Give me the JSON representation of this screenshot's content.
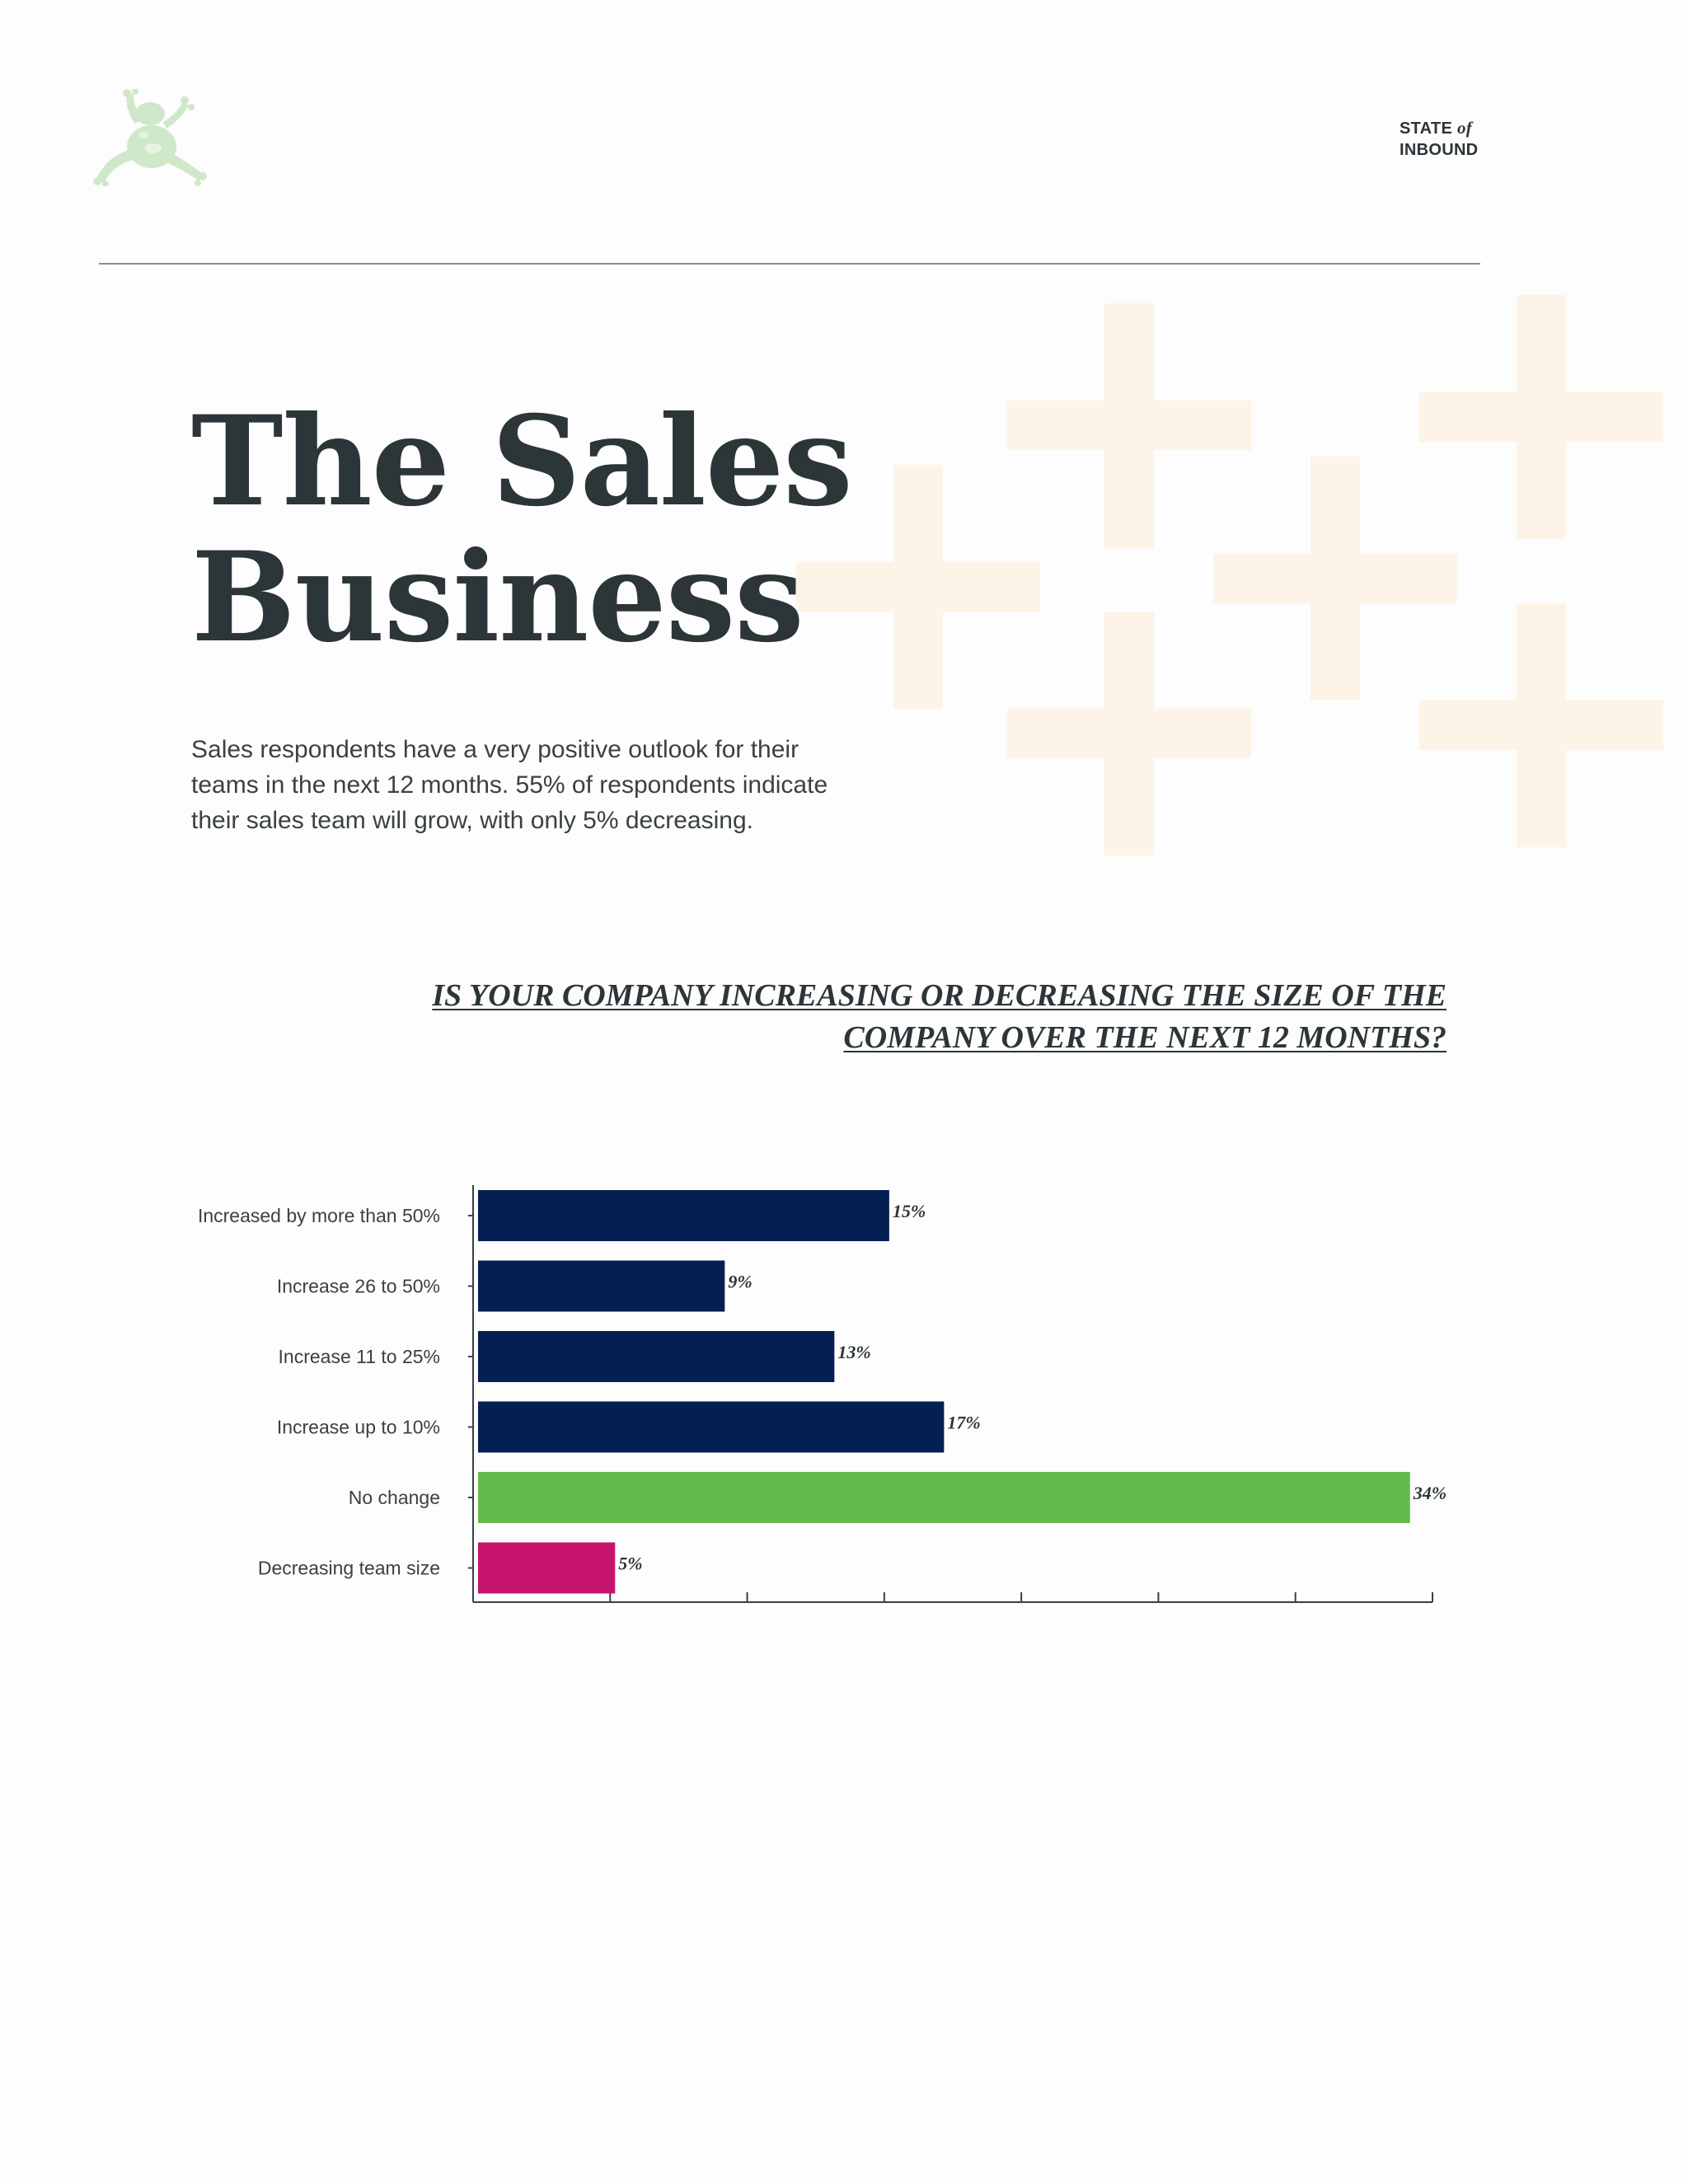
{
  "header": {
    "brand_top": "STATE",
    "brand_of": "of",
    "brand_bottom": "INBOUND",
    "logo_icon": "frog-icon",
    "logo_color": "#cfe8c9"
  },
  "title": {
    "line1": "The Sales",
    "line2": "Business"
  },
  "intro": "Sales respondents have a very positive outlook for their teams in the next 12 months. 55% of respondents indicate their sales team will grow, with only 5% decreasing.",
  "question": "IS YOUR COMPANY INCREASING OR DECREASING THE SIZE OF THE COMPANY OVER THE NEXT 12 MONTHS?",
  "colors": {
    "navy": "#061f52",
    "green": "#64ba4a",
    "magenta": "#c7156d",
    "text": "#2c3538",
    "decor_plus": "#fdf3e7"
  },
  "chart_data": {
    "type": "bar",
    "orientation": "horizontal",
    "title": "IS YOUR COMPANY INCREASING OR DECREASING THE SIZE OF THE COMPANY OVER THE NEXT 12 MONTHS?",
    "categories": [
      "Increased by more than 50%",
      "Increase 26 to 50%",
      "Increase 11 to 25%",
      "Increase up to 10%",
      "No change",
      "Decreasing team size"
    ],
    "values": [
      15,
      9,
      13,
      17,
      34,
      5
    ],
    "value_labels": [
      "15%",
      "9%",
      "13%",
      "17%",
      "34%",
      "5%"
    ],
    "bar_colors": [
      "#061f52",
      "#061f52",
      "#061f52",
      "#061f52",
      "#64ba4a",
      "#c7156d"
    ],
    "xlim": [
      0,
      35
    ],
    "x_tick_step": 5,
    "tick_labels_shown": false,
    "grid": false,
    "legend": false
  }
}
